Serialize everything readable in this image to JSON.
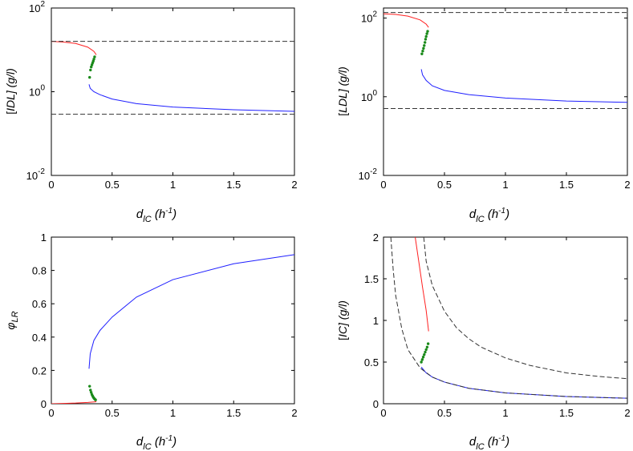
{
  "colors": {
    "stable_high": "#ff2020",
    "unstable": "#1a8a1a",
    "stable_low": "#1f1fff",
    "reference": "#333333"
  },
  "chart_data": [
    {
      "id": "idl",
      "type": "line",
      "yscale": "log",
      "xlim": [
        0,
        2
      ],
      "ylim": [
        0.01,
        100
      ],
      "xticks": [
        "0",
        "0.5",
        "1",
        "1.5",
        "2"
      ],
      "yticks": [
        {
          "base": "10",
          "exp": "-2"
        },
        {
          "base": "10",
          "exp": "0"
        },
        {
          "base": "10",
          "exp": "2"
        }
      ],
      "ylabel": {
        "left": "[",
        "var": "IDL",
        "right": "] (g/l)"
      },
      "xlabel": {
        "var": "d",
        "sub": "lC",
        "unit_left": " (h",
        "unit_sup": "-1",
        "unit_right": ")"
      },
      "series": [
        {
          "name": "red branch",
          "style": "solid",
          "color": "stable_high",
          "points": [
            [
              0,
              16
            ],
            [
              0.1,
              15.4
            ],
            [
              0.2,
              14.2
            ],
            [
              0.3,
              11.6
            ],
            [
              0.35,
              9.2
            ],
            [
              0.37,
              7.6
            ]
          ]
        },
        {
          "name": "green branch",
          "style": "dots",
          "color": "unstable",
          "points": [
            [
              0.315,
              2.2
            ],
            [
              0.322,
              3.3
            ],
            [
              0.328,
              3.9
            ],
            [
              0.334,
              4.4
            ],
            [
              0.34,
              4.9
            ],
            [
              0.345,
              5.4
            ],
            [
              0.35,
              6.0
            ],
            [
              0.356,
              6.8
            ]
          ]
        },
        {
          "name": "blue branch",
          "style": "solid",
          "color": "stable_low",
          "points": [
            [
              0.31,
              1.5
            ],
            [
              0.32,
              1.2
            ],
            [
              0.35,
              1.0
            ],
            [
              0.4,
              0.85
            ],
            [
              0.5,
              0.67
            ],
            [
              0.7,
              0.52
            ],
            [
              1.0,
              0.43
            ],
            [
              1.5,
              0.37
            ],
            [
              2.0,
              0.34
            ]
          ]
        },
        {
          "name": "upper reference",
          "style": "dashed",
          "color": "reference",
          "points": [
            [
              0,
              16
            ],
            [
              2,
              16
            ]
          ]
        },
        {
          "name": "lower reference",
          "style": "dashed",
          "color": "reference",
          "points": [
            [
              0,
              0.29
            ],
            [
              2,
              0.29
            ]
          ]
        }
      ]
    },
    {
      "id": "ldl",
      "type": "line",
      "yscale": "log",
      "xlim": [
        0,
        2
      ],
      "ylim": [
        0.01,
        180
      ],
      "xticks": [
        "0",
        "0.5",
        "1",
        "1.5",
        "2"
      ],
      "yticks": [
        {
          "base": "10",
          "exp": "-2"
        },
        {
          "base": "10",
          "exp": "0"
        },
        {
          "base": "10",
          "exp": "2"
        }
      ],
      "ylabel": {
        "left": "[",
        "var": "LDL",
        "right": "] (g/l)"
      },
      "xlabel": {
        "var": "d",
        "sub": "lC",
        "unit_left": " (h",
        "unit_sup": "-1",
        "unit_right": ")"
      },
      "series": [
        {
          "name": "red branch",
          "style": "solid",
          "color": "stable_high",
          "points": [
            [
              0,
              128
            ],
            [
              0.1,
              124
            ],
            [
              0.2,
              112
            ],
            [
              0.3,
              90
            ],
            [
              0.35,
              70
            ],
            [
              0.37,
              58
            ]
          ]
        },
        {
          "name": "green branch",
          "style": "dots",
          "color": "unstable",
          "points": [
            [
              0.315,
              12.3
            ],
            [
              0.322,
              14.5
            ],
            [
              0.328,
              17
            ],
            [
              0.334,
              20
            ],
            [
              0.34,
              24
            ],
            [
              0.345,
              29
            ],
            [
              0.35,
              34
            ],
            [
              0.356,
              40
            ],
            [
              0.362,
              46
            ]
          ]
        },
        {
          "name": "blue branch",
          "style": "solid",
          "color": "stable_low",
          "points": [
            [
              0.31,
              5.0
            ],
            [
              0.32,
              3.6
            ],
            [
              0.35,
              2.6
            ],
            [
              0.4,
              1.9
            ],
            [
              0.5,
              1.45
            ],
            [
              0.7,
              1.13
            ],
            [
              1.0,
              0.93
            ],
            [
              1.5,
              0.78
            ],
            [
              2.0,
              0.72
            ]
          ]
        },
        {
          "name": "upper reference",
          "style": "dashed",
          "color": "reference",
          "points": [
            [
              0,
              138
            ],
            [
              2,
              138
            ]
          ]
        },
        {
          "name": "lower reference",
          "style": "dashed",
          "color": "reference",
          "points": [
            [
              0,
              0.5
            ],
            [
              2,
              0.5
            ]
          ]
        }
      ]
    },
    {
      "id": "phi",
      "type": "line",
      "yscale": "linear",
      "xlim": [
        0,
        2
      ],
      "ylim": [
        0,
        1
      ],
      "xticks": [
        "0",
        "0.5",
        "1",
        "1.5",
        "2"
      ],
      "yticks": [
        "0",
        "0.2",
        "0.4",
        "0.6",
        "0.8",
        "1"
      ],
      "ylabel": {
        "var": "φ",
        "sub": "LR"
      },
      "xlabel": {
        "var": "d",
        "sub": "lC",
        "unit_left": " (h",
        "unit_sup": "-1",
        "unit_right": ")"
      },
      "series": [
        {
          "name": "red branch",
          "style": "solid",
          "color": "stable_high",
          "points": [
            [
              0,
              0
            ],
            [
              0.1,
              0.002
            ],
            [
              0.2,
              0.004
            ],
            [
              0.3,
              0.008
            ],
            [
              0.37,
              0.012
            ]
          ]
        },
        {
          "name": "green branch",
          "style": "dots",
          "color": "unstable",
          "points": [
            [
              0.315,
              0.105
            ],
            [
              0.322,
              0.082
            ],
            [
              0.328,
              0.068
            ],
            [
              0.334,
              0.055
            ],
            [
              0.34,
              0.046
            ],
            [
              0.346,
              0.038
            ],
            [
              0.352,
              0.032
            ],
            [
              0.358,
              0.027
            ],
            [
              0.364,
              0.023
            ]
          ]
        },
        {
          "name": "blue branch",
          "style": "solid",
          "color": "stable_low",
          "points": [
            [
              0.31,
              0.21
            ],
            [
              0.32,
              0.3
            ],
            [
              0.35,
              0.38
            ],
            [
              0.4,
              0.44
            ],
            [
              0.5,
              0.52
            ],
            [
              0.7,
              0.64
            ],
            [
              1.0,
              0.745
            ],
            [
              1.5,
              0.84
            ],
            [
              2.0,
              0.895
            ]
          ]
        }
      ]
    },
    {
      "id": "ic",
      "type": "line",
      "yscale": "linear",
      "xlim": [
        0,
        2
      ],
      "ylim": [
        0,
        2
      ],
      "xticks": [
        "0",
        "0.5",
        "1",
        "1.5",
        "2"
      ],
      "yticks": [
        "0",
        "0.5",
        "1",
        "1.5",
        "2"
      ],
      "ylabel": {
        "left": "[",
        "var": "IC",
        "right": "] (g/l)"
      },
      "xlabel": {
        "var": "d",
        "sub": "lC",
        "unit_left": " (h",
        "unit_sup": "-1",
        "unit_right": ")"
      },
      "series": [
        {
          "name": "red branch",
          "style": "solid",
          "color": "stable_high",
          "points": [
            [
              0.26,
              2.0
            ],
            [
              0.29,
              1.7
            ],
            [
              0.32,
              1.4
            ],
            [
              0.35,
              1.12
            ],
            [
              0.37,
              0.87
            ]
          ]
        },
        {
          "name": "green branch",
          "style": "dots",
          "color": "unstable",
          "points": [
            [
              0.31,
              0.5
            ],
            [
              0.318,
              0.53
            ],
            [
              0.326,
              0.56
            ],
            [
              0.334,
              0.59
            ],
            [
              0.342,
              0.62
            ],
            [
              0.35,
              0.65
            ],
            [
              0.358,
              0.68
            ],
            [
              0.366,
              0.72
            ]
          ]
        },
        {
          "name": "blue branch",
          "style": "solid",
          "color": "stable_low",
          "points": [
            [
              0.31,
              0.44
            ],
            [
              0.35,
              0.37
            ],
            [
              0.4,
              0.32
            ],
            [
              0.5,
              0.26
            ],
            [
              0.7,
              0.185
            ],
            [
              1.0,
              0.13
            ],
            [
              1.5,
              0.087
            ],
            [
              2.0,
              0.066
            ]
          ]
        },
        {
          "name": "upper dashed curve",
          "style": "dashed",
          "color": "reference",
          "points": [
            [
              0.33,
              2.0
            ],
            [
              0.35,
              1.71
            ],
            [
              0.4,
              1.42
            ],
            [
              0.5,
              1.11
            ],
            [
              0.6,
              0.91
            ],
            [
              0.7,
              0.78
            ],
            [
              0.8,
              0.68
            ],
            [
              1.0,
              0.55
            ],
            [
              1.2,
              0.46
            ],
            [
              1.5,
              0.37
            ],
            [
              1.75,
              0.33
            ],
            [
              2.0,
              0.3
            ]
          ]
        },
        {
          "name": "lower dashed curve",
          "style": "dashed",
          "color": "reference",
          "points": [
            [
              0.06,
              2.0
            ],
            [
              0.08,
              1.6
            ],
            [
              0.1,
              1.3
            ],
            [
              0.15,
              0.9
            ],
            [
              0.2,
              0.65
            ],
            [
              0.3,
              0.43
            ],
            [
              0.4,
              0.32
            ],
            [
              0.5,
              0.26
            ],
            [
              0.7,
              0.185
            ],
            [
              1.0,
              0.13
            ],
            [
              1.5,
              0.087
            ],
            [
              2.0,
              0.066
            ]
          ]
        }
      ]
    }
  ]
}
